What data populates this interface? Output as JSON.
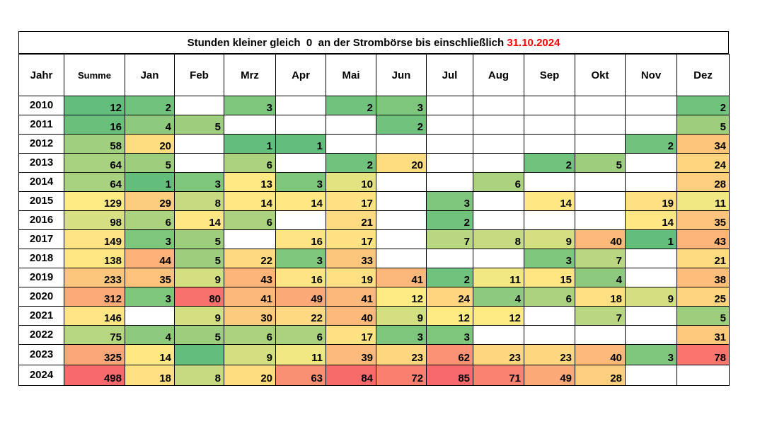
{
  "title": {
    "text": "Stunden kleiner gleich  0  an der Strombörse bis einschließlich ",
    "date": "31.10.2024",
    "date_color": "#ff0000"
  },
  "headers": [
    "Jahr",
    "Summe",
    "Jan",
    "Feb",
    "Mrz",
    "Apr",
    "Mai",
    "Jun",
    "Jul",
    "Aug",
    "Sep",
    "Okt",
    "Nov",
    "Dez"
  ],
  "color_scale": {
    "low": "#63be7b",
    "mid": "#ffeb84",
    "high": "#f8696b"
  },
  "rows": [
    {
      "year": "2010",
      "values": [
        "12",
        "2",
        "",
        "3",
        "",
        "2",
        "3",
        "",
        "",
        "",
        "",
        "",
        "2"
      ]
    },
    {
      "year": "2011",
      "values": [
        "16",
        "4",
        "5",
        "",
        "",
        "",
        "2",
        "",
        "",
        "",
        "",
        "",
        "5"
      ]
    },
    {
      "year": "2012",
      "values": [
        "58",
        "20",
        "",
        "1",
        "1",
        "",
        "",
        "",
        "",
        "",
        "",
        "2",
        "34"
      ]
    },
    {
      "year": "2013",
      "values": [
        "64",
        "5",
        "",
        "6",
        "",
        "2",
        "20",
        "",
        "",
        "2",
        "5",
        "",
        "24"
      ]
    },
    {
      "year": "2014",
      "values": [
        "64",
        "1",
        "3",
        "13",
        "3",
        "10",
        "",
        "",
        "6",
        "",
        "",
        "",
        "28"
      ]
    },
    {
      "year": "2015",
      "values": [
        "129",
        "29",
        "8",
        "14",
        "14",
        "17",
        "",
        "3",
        "",
        "14",
        "",
        "19",
        "11"
      ]
    },
    {
      "year": "2016",
      "values": [
        "98",
        "6",
        "14",
        "6",
        "",
        "21",
        "",
        "2",
        "",
        "",
        "",
        "14",
        "35"
      ]
    },
    {
      "year": "2017",
      "values": [
        "149",
        "3",
        "5",
        "",
        "16",
        "17",
        "",
        "7",
        "8",
        "9",
        "40",
        "1",
        "43"
      ]
    },
    {
      "year": "2018",
      "values": [
        "138",
        "44",
        "5",
        "22",
        "3",
        "33",
        "",
        "",
        "",
        "3",
        "7",
        "",
        "21"
      ]
    },
    {
      "year": "2019",
      "values": [
        "233",
        "35",
        "9",
        "43",
        "16",
        "19",
        "41",
        "2",
        "11",
        "15",
        "4",
        "",
        "38"
      ]
    },
    {
      "year": "2020",
      "values": [
        "312",
        "3",
        "80",
        "41",
        "49",
        "41",
        "12",
        "24",
        "4",
        "6",
        "18",
        "9",
        "25"
      ]
    },
    {
      "year": "2021",
      "values": [
        "146",
        "",
        "9",
        "30",
        "22",
        "40",
        "9",
        "12",
        "12",
        "",
        "7",
        "",
        "5"
      ]
    },
    {
      "year": "2022",
      "values": [
        "75",
        "4",
        "5",
        "6",
        "6",
        "17",
        "3",
        "3",
        "",
        "",
        "",
        "",
        "31"
      ]
    },
    {
      "year": "2023",
      "values": [
        "325",
        "14",
        "",
        "9",
        "11",
        "39",
        "23",
        "62",
        "23",
        "23",
        "40",
        "3",
        "78"
      ]
    },
    {
      "year": "2024",
      "values": [
        "498",
        "18",
        "8",
        "20",
        "63",
        "84",
        "72",
        "85",
        "71",
        "49",
        "28",
        "",
        ""
      ]
    }
  ],
  "filled_empty_cells": [
    {
      "year": "2023",
      "column": "Feb",
      "color": "#63be7b"
    }
  ]
}
